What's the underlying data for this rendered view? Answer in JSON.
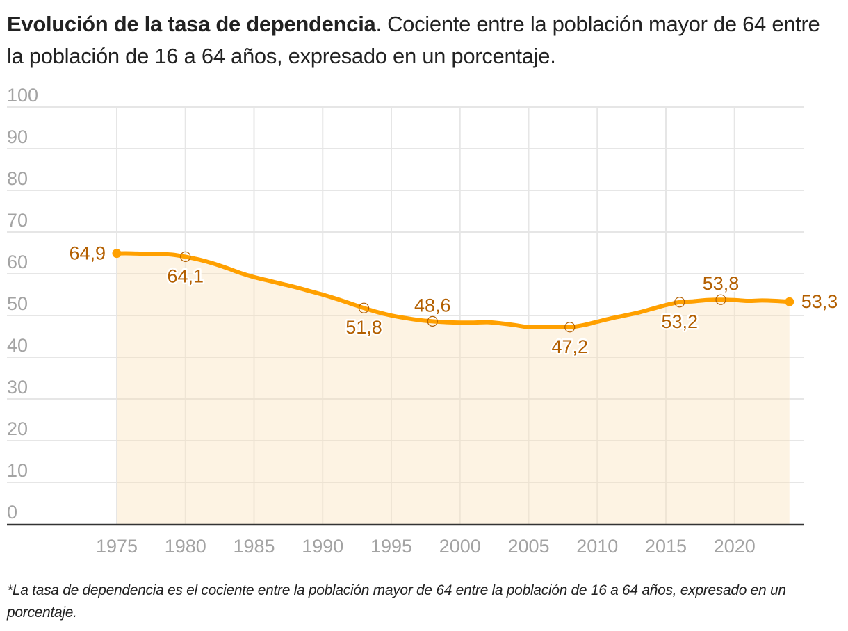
{
  "title": {
    "bold": "Evolución de la tasa de dependencia",
    "rest": ". Cociente entre la población mayor de 64 entre la población de 16 a 64 años, expresado en un porcentaje."
  },
  "footnote": "*La tasa de dependencia es el cociente entre la población mayor de 64 entre la población de 16 a 64 años, expresado en un porcentaje.",
  "colors": {
    "line": "#ffa000",
    "area": "#fdf3e3",
    "label": "#b35f00",
    "grid": "#e6e6e6",
    "tick": "#a3a3a3",
    "axis": "#333333"
  },
  "chart_data": {
    "type": "area",
    "title": "Evolución de la tasa de dependencia",
    "xlabel": "",
    "ylabel": "",
    "ylim": [
      0,
      100
    ],
    "xlim": [
      1975,
      2024
    ],
    "yticks": [
      0,
      10,
      20,
      30,
      40,
      50,
      60,
      70,
      80,
      90,
      100
    ],
    "xticks": [
      1975,
      1980,
      1985,
      1990,
      1995,
      2000,
      2005,
      2010,
      2015,
      2020
    ],
    "grid": true,
    "legend": "none",
    "series": [
      {
        "name": "Tasa de dependencia",
        "x": [
          1975,
          1976,
          1977,
          1978,
          1979,
          1980,
          1981,
          1982,
          1983,
          1984,
          1985,
          1986,
          1987,
          1988,
          1989,
          1990,
          1991,
          1992,
          1993,
          1994,
          1995,
          1996,
          1997,
          1998,
          1999,
          2000,
          2001,
          2002,
          2003,
          2004,
          2005,
          2006,
          2007,
          2008,
          2009,
          2010,
          2011,
          2012,
          2013,
          2014,
          2015,
          2016,
          2017,
          2018,
          2019,
          2020,
          2021,
          2022,
          2023,
          2024
        ],
        "values": [
          64.9,
          64.9,
          64.8,
          64.8,
          64.6,
          64.1,
          63.4,
          62.5,
          61.4,
          60.2,
          59.2,
          58.4,
          57.6,
          56.8,
          55.9,
          55.0,
          54.0,
          52.9,
          51.8,
          50.8,
          50.0,
          49.4,
          48.9,
          48.6,
          48.4,
          48.3,
          48.3,
          48.4,
          48.1,
          47.7,
          47.2,
          47.3,
          47.3,
          47.2,
          47.7,
          48.5,
          49.3,
          50.0,
          50.7,
          51.6,
          52.5,
          53.2,
          53.4,
          53.7,
          53.8,
          53.7,
          53.5,
          53.6,
          53.5,
          53.3
        ]
      }
    ],
    "annotations": [
      {
        "x": 1975,
        "value": 64.9,
        "label": "64,9",
        "marker": "filled",
        "position": "left"
      },
      {
        "x": 1980,
        "value": 64.1,
        "label": "64,1",
        "marker": "open",
        "position": "below"
      },
      {
        "x": 1993,
        "value": 51.8,
        "label": "51,8",
        "marker": "open",
        "position": "below"
      },
      {
        "x": 1998,
        "value": 48.6,
        "label": "48,6",
        "marker": "open",
        "position": "above"
      },
      {
        "x": 2008,
        "value": 47.2,
        "label": "47,2",
        "marker": "open",
        "position": "below"
      },
      {
        "x": 2016,
        "value": 53.2,
        "label": "53,2",
        "marker": "open",
        "position": "below"
      },
      {
        "x": 2019,
        "value": 53.8,
        "label": "53,8",
        "marker": "open",
        "position": "above"
      },
      {
        "x": 2024,
        "value": 53.3,
        "label": "53,3",
        "marker": "filled",
        "position": "right"
      }
    ]
  }
}
